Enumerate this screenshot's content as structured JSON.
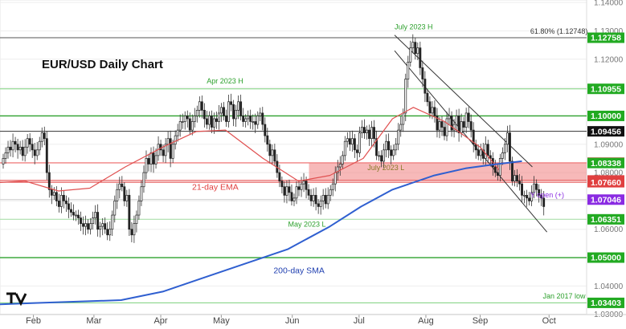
{
  "chart_data": {
    "type": "candlestick",
    "title": "EUR/USD Daily Chart",
    "ylim": [
      1.0299,
      1.1409
    ],
    "y_axis_ticks": [
      1.14,
      1.13,
      1.12,
      1.11,
      1.1,
      1.09,
      1.08,
      1.07,
      1.06,
      1.05,
      1.04,
      1.03
    ],
    "x_axis_months": [
      "Feb",
      "Mar",
      "Apr",
      "May",
      "Jun",
      "Jul",
      "Aug",
      "Sep",
      "Oct"
    ],
    "x_axis_month_positions": [
      18,
      47,
      79,
      108,
      142,
      174,
      206,
      232,
      265
    ],
    "x_range": [
      2,
      283
    ],
    "colors": {
      "up": "#2f8f3a",
      "down": "#e04040",
      "ema": "#e05050",
      "sma": "#2f5fd0",
      "support": "#2ca02c",
      "zone": "#f08080"
    },
    "levels": [
      {
        "value": 1.12758,
        "label": "1.12758",
        "badge_color": "#22aa22",
        "line_color": "#555555"
      },
      {
        "value": 1.10955,
        "label": "1.10955",
        "badge_color": "#22aa22",
        "line_color": "#7bd17b"
      },
      {
        "value": 1.1,
        "label": "1.10000",
        "badge_color": "#22aa22",
        "line_color": "#2ca02c"
      },
      {
        "value": 1.09456,
        "label": "1.09456",
        "badge_color": "#111111",
        "line_color": "#333333"
      },
      {
        "value": 1.0835,
        "label": "1.08350",
        "badge_color": "#e04040",
        "line_color": "#f08080"
      },
      {
        "value": 1.08338,
        "label": "1.08338",
        "badge_color": "#22aa22",
        "line_color": "#f08080"
      },
      {
        "value": 1.07722,
        "label": "1.07722",
        "badge_color": "#e04040",
        "line_color": "#e04040"
      },
      {
        "value": 1.0766,
        "label": "1.07660",
        "badge_color": "#e04040",
        "line_color": "#e04040"
      },
      {
        "value": 1.07046,
        "label": "1.07046",
        "badge_color": "#8a2be2",
        "line_color": "#cccccc"
      },
      {
        "value": 1.06351,
        "label": "1.06351",
        "badge_color": "#22aa22",
        "line_color": "#a0dca0"
      },
      {
        "value": 1.05,
        "label": "1.05000",
        "badge_color": "#22aa22",
        "line_color": "#2ca02c"
      },
      {
        "value": 1.03403,
        "label": "1.03403",
        "badge_color": "#22aa22",
        "line_color": "#7bd17b"
      }
    ],
    "zone": {
      "from": 1.07722,
      "to": 1.0835,
      "x_start": 150
    },
    "annotations": [
      {
        "text": "July 2023 H",
        "x": 191,
        "y": 1.1305,
        "color": "#2ca02c"
      },
      {
        "text": "61.80% (1.12748)",
        "x": 256,
        "y": 1.129,
        "color": "#333333"
      },
      {
        "text": "Apr 2023 H",
        "x": 101,
        "y": 1.1115,
        "color": "#2ca02c"
      },
      {
        "text": "July 2023 L",
        "x": 178,
        "y": 1.0808,
        "color": "#8a7a2a"
      },
      {
        "text": "21-day EMA",
        "x": 94,
        "y": 1.074,
        "color": "#e04040"
      },
      {
        "text": "Y open (+)",
        "x": 256,
        "y": 1.0713,
        "color": "#8a2be2"
      },
      {
        "text": "May 2023 L",
        "x": 140,
        "y": 1.0609,
        "color": "#2ca02c"
      },
      {
        "text": "200-day SMA",
        "x": 133,
        "y": 1.0445,
        "color": "#1f3fb0"
      },
      {
        "text": "Jan 2017 low",
        "x": 262,
        "y": 1.0355,
        "color": "#2ca02c"
      }
    ],
    "channel": [
      {
        "x1": 191,
        "y1": 1.1285,
        "x2": 257,
        "y2": 1.082
      },
      {
        "x1": 191,
        "y1": 1.123,
        "x2": 264,
        "y2": 1.059
      }
    ],
    "ema_21": {
      "x": [
        2,
        14,
        30,
        45,
        62,
        80,
        96,
        110,
        128,
        145,
        160,
        176,
        190,
        200,
        215,
        232,
        241
      ],
      "y": [
        1.0765,
        1.077,
        1.0735,
        1.0745,
        1.082,
        1.089,
        1.0945,
        1.095,
        1.085,
        1.077,
        1.079,
        1.085,
        1.099,
        1.103,
        1.098,
        1.089,
        1.081
      ]
    },
    "sma_200": {
      "x": [
        2,
        20,
        40,
        60,
        80,
        100,
        120,
        140,
        160,
        175,
        190,
        210,
        225,
        240,
        252
      ],
      "y": [
        1.0335,
        1.034,
        1.0345,
        1.035,
        1.038,
        1.043,
        1.048,
        1.053,
        1.061,
        1.068,
        1.074,
        1.079,
        1.0815,
        1.083,
        1.084
      ]
    },
    "closes": [
      1.085,
      1.087,
      1.089,
      1.088,
      1.091,
      1.09,
      1.088,
      1.089,
      1.086,
      1.089,
      1.092,
      1.09,
      1.088,
      1.086,
      1.088,
      1.091,
      1.094,
      1.092,
      1.08,
      1.074,
      1.072,
      1.073,
      1.07,
      1.068,
      1.072,
      1.07,
      1.069,
      1.067,
      1.066,
      1.065,
      1.065,
      1.064,
      1.062,
      1.061,
      1.062,
      1.06,
      1.062,
      1.064,
      1.066,
      1.06,
      1.061,
      1.062,
      1.06,
      1.058,
      1.06,
      1.065,
      1.07,
      1.074,
      1.076,
      1.075,
      1.07,
      1.072,
      1.06,
      1.058,
      1.062,
      1.065,
      1.07,
      1.075,
      1.08,
      1.085,
      1.083,
      1.087,
      1.083,
      1.086,
      1.09,
      1.088,
      1.086,
      1.09,
      1.092,
      1.085,
      1.09,
      1.093,
      1.095,
      1.098,
      1.098,
      1.1,
      1.099,
      1.095,
      1.098,
      1.1,
      1.102,
      1.105,
      1.102,
      1.099,
      1.097,
      1.1,
      1.096,
      1.099,
      1.098,
      1.101,
      1.103,
      1.1,
      1.098,
      1.105,
      1.104,
      1.099,
      1.102,
      1.105,
      1.1,
      1.098,
      1.099,
      1.1,
      1.098,
      1.098,
      1.097,
      1.1,
      1.101,
      1.097,
      1.093,
      1.09,
      1.086,
      1.088,
      1.084,
      1.08,
      1.077,
      1.075,
      1.072,
      1.075,
      1.073,
      1.07,
      1.071,
      1.075,
      1.074,
      1.076,
      1.077,
      1.074,
      1.072,
      1.07,
      1.072,
      1.069,
      1.068,
      1.07,
      1.072,
      1.069,
      1.072,
      1.074,
      1.076,
      1.08,
      1.082,
      1.083,
      1.086,
      1.091,
      1.092,
      1.09,
      1.092,
      1.088,
      1.087,
      1.094,
      1.096,
      1.094,
      1.095,
      1.092,
      1.096,
      1.092,
      1.086,
      1.086,
      1.084,
      1.088,
      1.091,
      1.088,
      1.086,
      1.088,
      1.09,
      1.095,
      1.097,
      1.101,
      1.113,
      1.119,
      1.124,
      1.126,
      1.122,
      1.124,
      1.117,
      1.113,
      1.108,
      1.105,
      1.101,
      1.103,
      1.1,
      1.095,
      1.098,
      1.096,
      1.093,
      1.099,
      1.1,
      1.095,
      1.097,
      1.1,
      1.094,
      1.098,
      1.096,
      1.101,
      1.098,
      1.095,
      1.09,
      1.088,
      1.086,
      1.088,
      1.085,
      1.09,
      1.086,
      1.085,
      1.082,
      1.08,
      1.079,
      1.085,
      1.087,
      1.09,
      1.094,
      1.084,
      1.077,
      1.079,
      1.077,
      1.076,
      1.072,
      1.072,
      1.071,
      1.07,
      1.073,
      1.076,
      1.074,
      1.072,
      1.071,
      1.068
    ]
  }
}
